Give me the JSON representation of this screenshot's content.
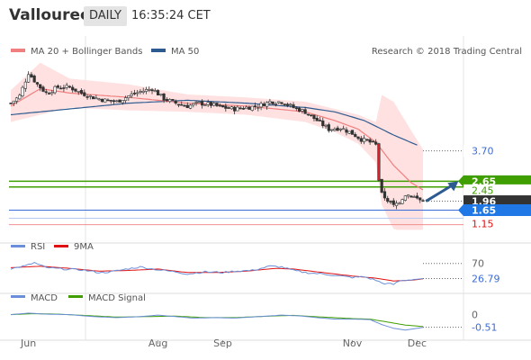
{
  "header": {
    "title": "Vallourec",
    "timeframe": "DAILY",
    "time": "16:35:24 CET"
  },
  "colors": {
    "ma20": "#f08080",
    "ma50": "#2d5b8f",
    "band_fill": "#ffdede",
    "green": "#3f9e00",
    "blue_line": "#3b6cd6",
    "red_line": "#f09090",
    "rsi": "#6a8fd8",
    "rsi_ma": "#e01010",
    "macd": "#6a8fd8",
    "macd_signal": "#3f9e00"
  },
  "main": {
    "legend": [
      {
        "name": "MA 20 + Bollinger Bands"
      },
      {
        "name": "MA 50"
      }
    ],
    "watermark": "Research © 2018 Trading Central",
    "levels": [
      {
        "label": "3.70",
        "value": 3.7,
        "kind": "dotted",
        "tag_bg": "#ffffff",
        "tag_fg": "#3b6cd6"
      },
      {
        "label": "2.65",
        "value": 2.65,
        "kind": "green",
        "tag_bg": "#3f9e00",
        "tag_fg": "#ffffff"
      },
      {
        "label": "2.45",
        "value": 2.45,
        "kind": "green",
        "tag_bg": "#ffffff",
        "tag_fg": "#3f9e00"
      },
      {
        "label": "1.96",
        "value": 1.96,
        "kind": "dotted",
        "tag_bg": "#333333",
        "tag_fg": "#ffffff"
      },
      {
        "label": "1.65",
        "value": 1.65,
        "kind": "blue",
        "tag_bg": "#1f78e6",
        "tag_fg": "#ffffff"
      },
      {
        "label": "1.15",
        "value": 1.15,
        "kind": "red",
        "tag_bg": "#ffffff",
        "tag_fg": "#e01010"
      }
    ]
  },
  "rsi": {
    "legend": [
      {
        "name": "RSI"
      },
      {
        "name": "9MA"
      }
    ],
    "levels": [
      {
        "label": "70",
        "value": 70
      }
    ],
    "last_label": "26.79",
    "last_value": 26.79
  },
  "macd": {
    "legend": [
      {
        "name": "MACD"
      },
      {
        "name": "MACD Signal"
      }
    ],
    "levels": [
      {
        "label": "0",
        "value": 0
      }
    ],
    "last_label": "-0.51",
    "last_value": -0.51
  },
  "xaxis": {
    "labels": [
      {
        "label": "Jun",
        "idx": 6
      },
      {
        "label": "Aug",
        "idx": 50
      },
      {
        "label": "Sep",
        "idx": 72
      },
      {
        "label": "Nov",
        "idx": 116
      },
      {
        "label": "Dec",
        "idx": 138
      }
    ]
  },
  "chart_data": {
    "type": "line",
    "price_anchors": [
      [
        0,
        5.35
      ],
      [
        3,
        5.6
      ],
      [
        6,
        6.4
      ],
      [
        9,
        6.0
      ],
      [
        12,
        5.7
      ],
      [
        16,
        5.9
      ],
      [
        20,
        5.9
      ],
      [
        24,
        5.7
      ],
      [
        28,
        5.55
      ],
      [
        32,
        5.45
      ],
      [
        36,
        5.4
      ],
      [
        40,
        5.6
      ],
      [
        44,
        5.75
      ],
      [
        48,
        5.85
      ],
      [
        52,
        5.5
      ],
      [
        56,
        5.35
      ],
      [
        60,
        5.25
      ],
      [
        64,
        5.35
      ],
      [
        68,
        5.3
      ],
      [
        72,
        5.2
      ],
      [
        76,
        5.15
      ],
      [
        80,
        5.2
      ],
      [
        84,
        5.25
      ],
      [
        88,
        5.4
      ],
      [
        92,
        5.4
      ],
      [
        96,
        5.2
      ],
      [
        100,
        5.05
      ],
      [
        104,
        4.75
      ],
      [
        108,
        4.45
      ],
      [
        112,
        4.5
      ],
      [
        116,
        4.3
      ],
      [
        119,
        4.1
      ],
      [
        122,
        4.0
      ],
      [
        124,
        3.9
      ],
      [
        125,
        2.7
      ],
      [
        126,
        2.2
      ],
      [
        128,
        2.0
      ],
      [
        130,
        1.8
      ],
      [
        132,
        1.95
      ],
      [
        134,
        2.2
      ],
      [
        136,
        2.15
      ],
      [
        138,
        2.05
      ],
      [
        140,
        1.96
      ]
    ],
    "ma20_anchors": [
      [
        0,
        5.25
      ],
      [
        10,
        5.85
      ],
      [
        20,
        5.7
      ],
      [
        40,
        5.55
      ],
      [
        60,
        5.35
      ],
      [
        80,
        5.25
      ],
      [
        100,
        5.05
      ],
      [
        110,
        4.75
      ],
      [
        118,
        4.45
      ],
      [
        124,
        4.0
      ],
      [
        130,
        3.2
      ],
      [
        136,
        2.6
      ],
      [
        140,
        2.35
      ]
    ],
    "bb_width_anchors": [
      [
        0,
        0.55
      ],
      [
        10,
        0.9
      ],
      [
        20,
        0.5
      ],
      [
        40,
        0.45
      ],
      [
        60,
        0.3
      ],
      [
        80,
        0.3
      ],
      [
        100,
        0.35
      ],
      [
        110,
        0.4
      ],
      [
        118,
        0.5
      ],
      [
        124,
        0.7
      ],
      [
        126,
        1.9
      ],
      [
        130,
        2.2
      ],
      [
        136,
        1.8
      ],
      [
        140,
        1.4
      ]
    ],
    "ma50_anchors": [
      [
        0,
        4.95
      ],
      [
        20,
        5.15
      ],
      [
        40,
        5.35
      ],
      [
        60,
        5.45
      ],
      [
        80,
        5.35
      ],
      [
        100,
        5.2
      ],
      [
        110,
        5.05
      ],
      [
        120,
        4.75
      ],
      [
        130,
        4.25
      ],
      [
        138,
        3.9
      ]
    ],
    "rsi_anchors": [
      [
        0,
        55
      ],
      [
        5,
        63
      ],
      [
        8,
        72
      ],
      [
        12,
        58
      ],
      [
        18,
        54
      ],
      [
        24,
        52
      ],
      [
        30,
        44
      ],
      [
        34,
        46
      ],
      [
        40,
        55
      ],
      [
        44,
        60
      ],
      [
        50,
        52
      ],
      [
        56,
        46
      ],
      [
        60,
        40
      ],
      [
        66,
        46
      ],
      [
        72,
        44
      ],
      [
        76,
        48
      ],
      [
        82,
        50
      ],
      [
        88,
        62
      ],
      [
        92,
        60
      ],
      [
        96,
        50
      ],
      [
        100,
        44
      ],
      [
        106,
        40
      ],
      [
        110,
        36
      ],
      [
        116,
        30
      ],
      [
        120,
        32
      ],
      [
        124,
        22
      ],
      [
        126,
        14
      ],
      [
        130,
        10
      ],
      [
        132,
        20
      ],
      [
        136,
        24
      ],
      [
        140,
        26.79
      ]
    ],
    "rsi_ma_anchors": [
      [
        0,
        58
      ],
      [
        10,
        62
      ],
      [
        20,
        56
      ],
      [
        30,
        48
      ],
      [
        40,
        50
      ],
      [
        50,
        54
      ],
      [
        60,
        44
      ],
      [
        70,
        44
      ],
      [
        80,
        48
      ],
      [
        90,
        56
      ],
      [
        96,
        54
      ],
      [
        106,
        44
      ],
      [
        116,
        34
      ],
      [
        124,
        28
      ],
      [
        130,
        20
      ],
      [
        136,
        22
      ],
      [
        140,
        26
      ]
    ],
    "macd_anchors": [
      [
        0,
        0.0
      ],
      [
        6,
        0.06
      ],
      [
        12,
        0.02
      ],
      [
        20,
        0.0
      ],
      [
        28,
        -0.08
      ],
      [
        36,
        -0.12
      ],
      [
        44,
        -0.08
      ],
      [
        50,
        -0.02
      ],
      [
        56,
        -0.08
      ],
      [
        62,
        -0.14
      ],
      [
        70,
        -0.12
      ],
      [
        76,
        -0.14
      ],
      [
        84,
        -0.08
      ],
      [
        92,
        -0.02
      ],
      [
        98,
        -0.05
      ],
      [
        104,
        -0.12
      ],
      [
        110,
        -0.18
      ],
      [
        116,
        -0.18
      ],
      [
        122,
        -0.2
      ],
      [
        126,
        -0.4
      ],
      [
        130,
        -0.55
      ],
      [
        134,
        -0.62
      ],
      [
        138,
        -0.55
      ],
      [
        140,
        -0.51
      ]
    ],
    "signal_anchors": [
      [
        0,
        0.0
      ],
      [
        8,
        0.04
      ],
      [
        16,
        0.02
      ],
      [
        28,
        -0.05
      ],
      [
        36,
        -0.1
      ],
      [
        46,
        -0.08
      ],
      [
        56,
        -0.06
      ],
      [
        66,
        -0.12
      ],
      [
        76,
        -0.12
      ],
      [
        88,
        -0.06
      ],
      [
        96,
        -0.03
      ],
      [
        106,
        -0.1
      ],
      [
        116,
        -0.16
      ],
      [
        122,
        -0.18
      ],
      [
        128,
        -0.3
      ],
      [
        134,
        -0.42
      ],
      [
        140,
        -0.48
      ]
    ],
    "projection": [
      [
        141,
        1.96
      ],
      [
        152,
        2.65
      ]
    ],
    "n_bars": 141,
    "ranges": {
      "price": [
        0.95,
        7.05
      ],
      "rsi": [
        5,
        95
      ],
      "macd": [
        -0.74,
        0.42
      ]
    }
  }
}
